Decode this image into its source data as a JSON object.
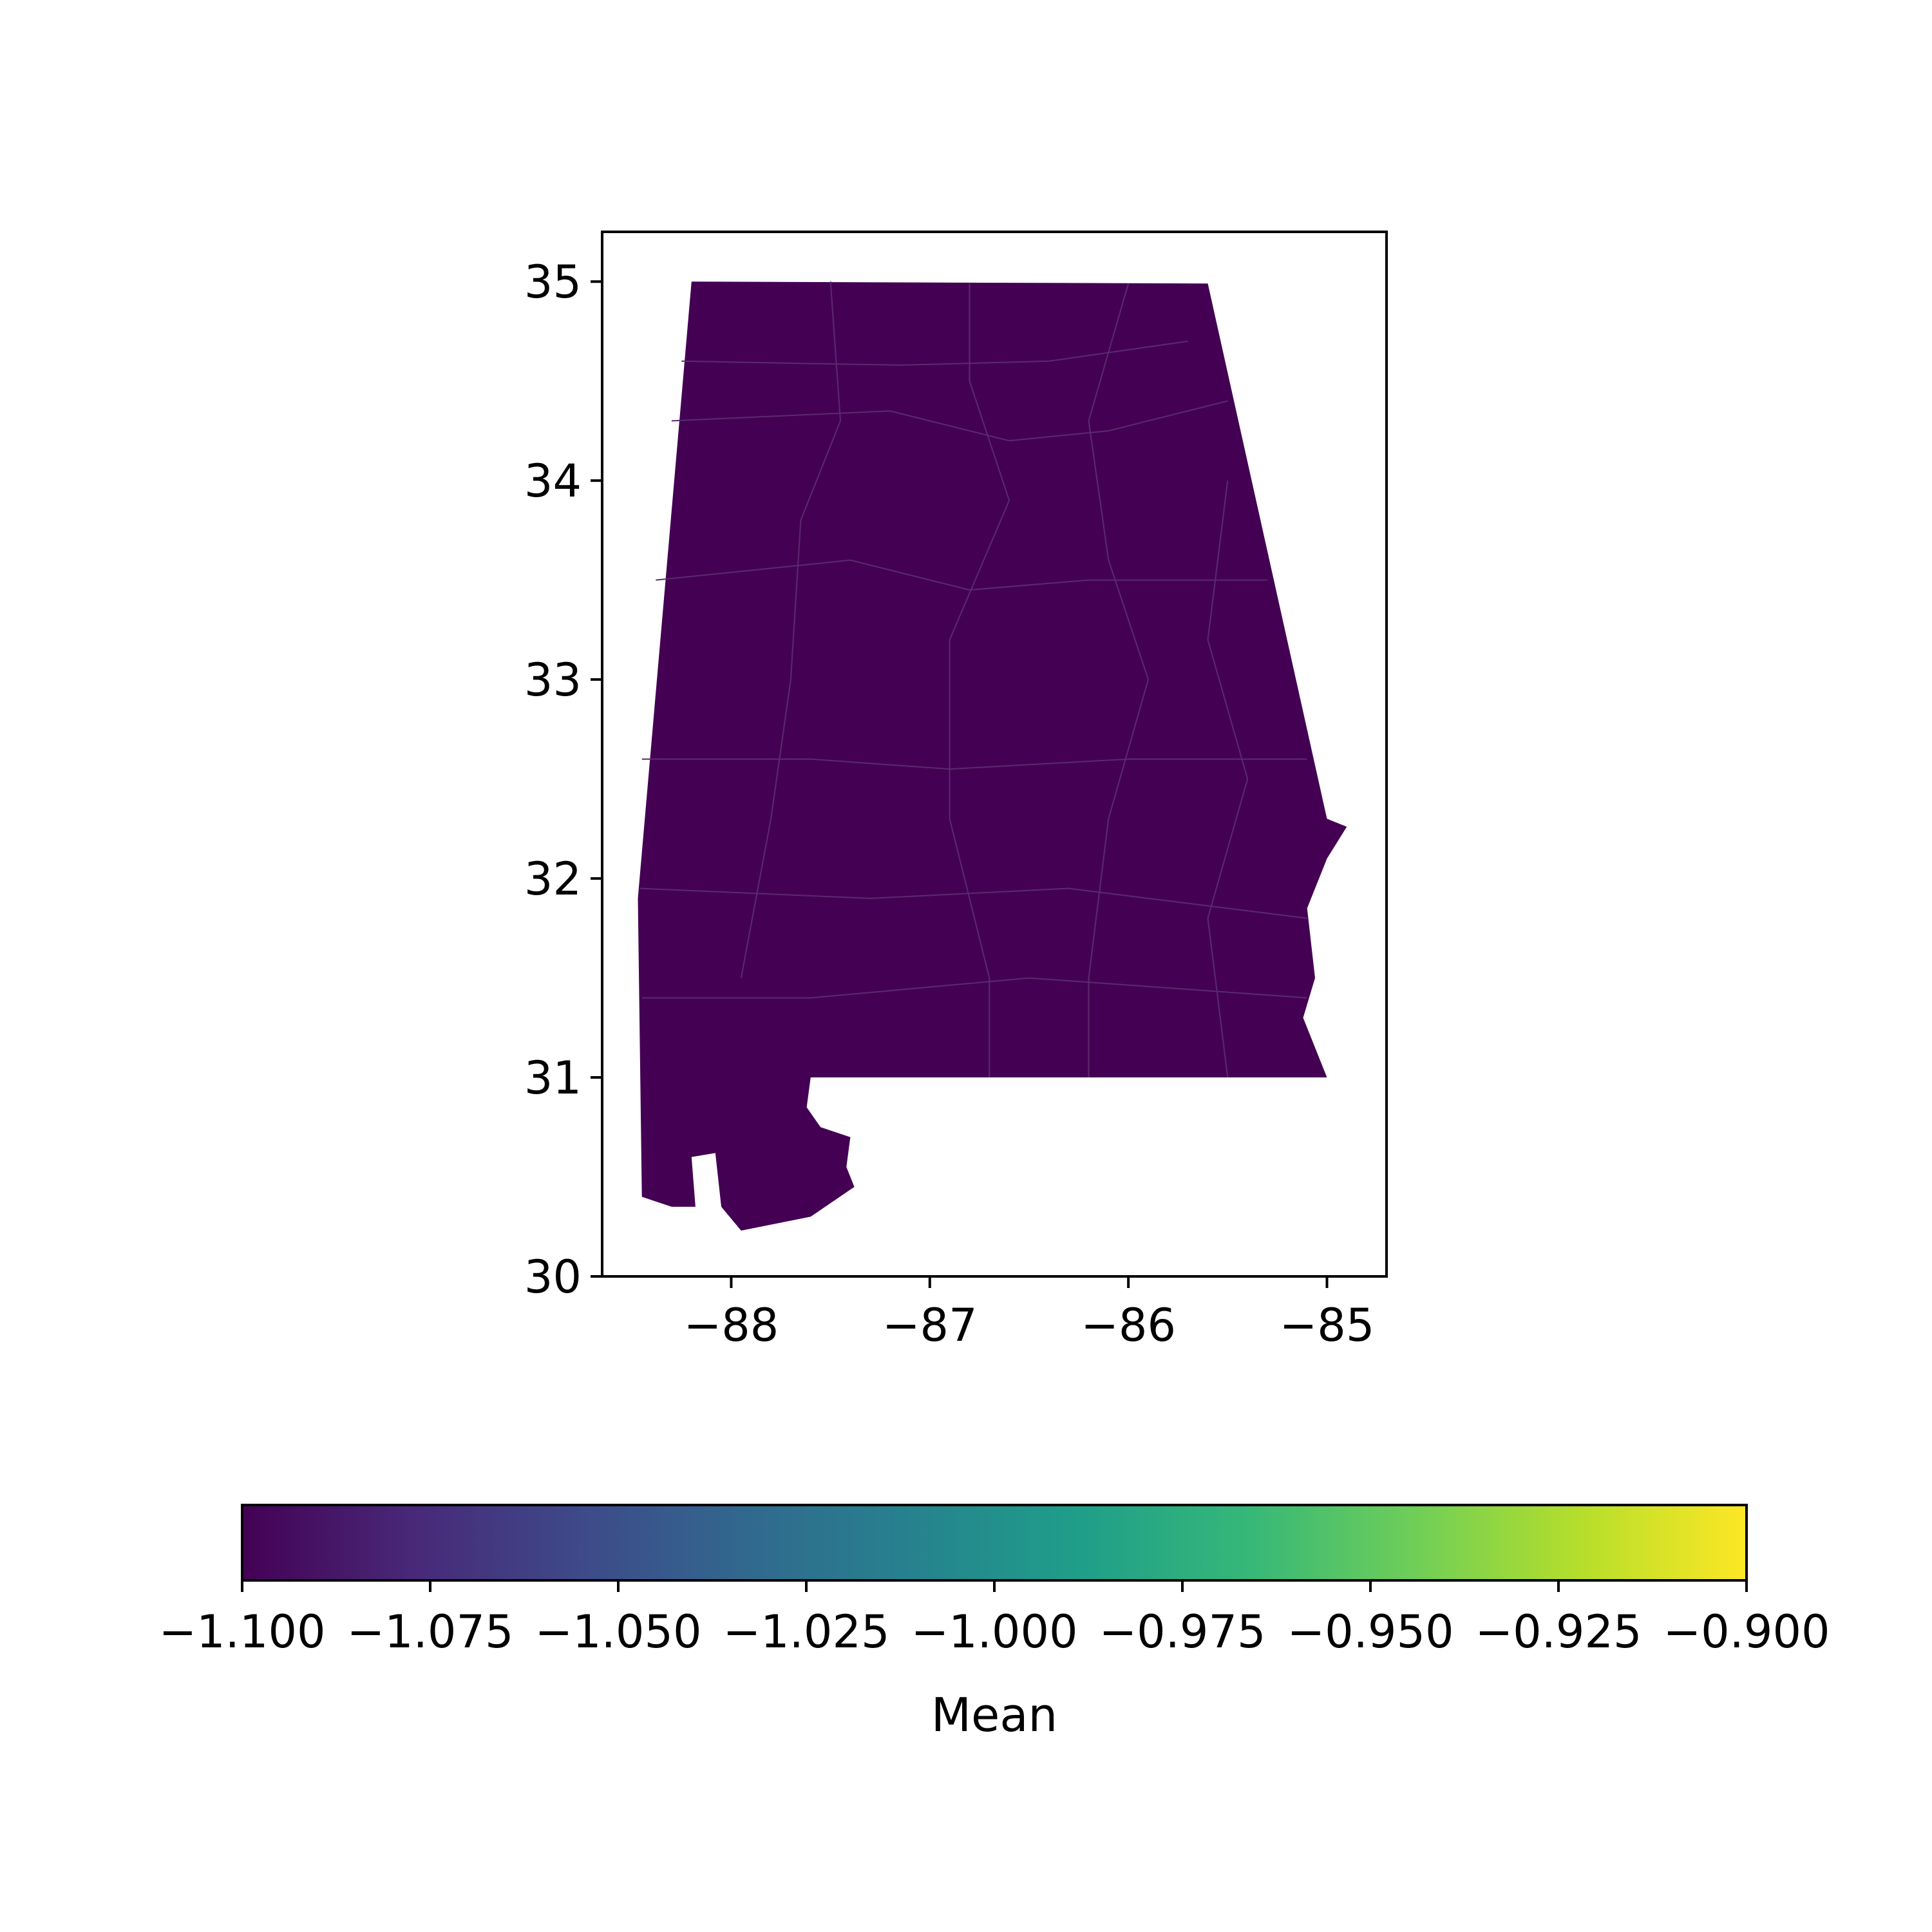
{
  "chart_data": {
    "type": "choropleth",
    "region": "Alabama counties",
    "uniform_value": -1.1,
    "fill_color": "#440154",
    "x_axis": {
      "range": [
        -88.65,
        -84.7
      ],
      "ticks": [
        -88,
        -87,
        -86,
        -85
      ],
      "tick_labels": [
        "−88",
        "−87",
        "−86",
        "−85"
      ]
    },
    "y_axis": {
      "range": [
        30.0,
        35.25
      ],
      "ticks": [
        30,
        31,
        32,
        33,
        34,
        35
      ],
      "tick_labels": [
        "30",
        "31",
        "32",
        "33",
        "34",
        "35"
      ]
    },
    "colorbar": {
      "label": "Mean",
      "range": [
        -1.1,
        -0.9
      ],
      "orientation": "horizontal",
      "colormap": "viridis",
      "colormap_stops": [
        "#440154",
        "#482878",
        "#3e4989",
        "#31688e",
        "#26828e",
        "#1f9e89",
        "#35b779",
        "#6ece58",
        "#b5de2b",
        "#fde725"
      ],
      "ticks": [
        -1.1,
        -1.075,
        -1.05,
        -1.025,
        -1.0,
        -0.975,
        -0.95,
        -0.925,
        -0.9
      ],
      "tick_labels": [
        "−1.100",
        "−1.075",
        "−1.050",
        "−1.025",
        "−1.000",
        "−0.975",
        "−0.950",
        "−0.925",
        "−0.900"
      ]
    },
    "state_outline_lonlat": [
      [
        -88.2,
        35.0
      ],
      [
        -85.6,
        34.99
      ],
      [
        -85.0,
        32.3
      ],
      [
        -84.9,
        32.26
      ],
      [
        -85.0,
        32.1
      ],
      [
        -85.1,
        31.85
      ],
      [
        -85.06,
        31.5
      ],
      [
        -85.12,
        31.3
      ],
      [
        -85.0,
        31.0
      ],
      [
        -87.6,
        31.0
      ],
      [
        -87.62,
        30.85
      ],
      [
        -87.55,
        30.75
      ],
      [
        -87.4,
        30.7
      ],
      [
        -87.42,
        30.55
      ],
      [
        -87.38,
        30.45
      ],
      [
        -87.6,
        30.3
      ],
      [
        -87.95,
        30.23
      ],
      [
        -88.05,
        30.35
      ],
      [
        -88.08,
        30.62
      ],
      [
        -88.2,
        30.6
      ],
      [
        -88.18,
        30.35
      ],
      [
        -88.3,
        30.35
      ],
      [
        -88.45,
        30.4
      ],
      [
        -88.47,
        31.9
      ],
      [
        -88.2,
        35.0
      ]
    ],
    "county_lines_lonlat": [
      [
        [
          -88.25,
          34.6
        ],
        [
          -87.15,
          34.58
        ],
        [
          -86.4,
          34.6
        ],
        [
          -85.7,
          34.7
        ]
      ],
      [
        [
          -88.3,
          34.3
        ],
        [
          -87.2,
          34.35
        ],
        [
          -86.6,
          34.2
        ],
        [
          -86.1,
          34.25
        ],
        [
          -85.5,
          34.4
        ]
      ],
      [
        [
          -88.38,
          33.5
        ],
        [
          -87.4,
          33.6
        ],
        [
          -86.8,
          33.45
        ],
        [
          -86.2,
          33.5
        ],
        [
          -85.3,
          33.5
        ]
      ],
      [
        [
          -88.45,
          32.6
        ],
        [
          -87.6,
          32.6
        ],
        [
          -86.9,
          32.55
        ],
        [
          -86.0,
          32.6
        ],
        [
          -85.1,
          32.6
        ]
      ],
      [
        [
          -88.46,
          31.95
        ],
        [
          -87.3,
          31.9
        ],
        [
          -86.3,
          31.95
        ],
        [
          -85.1,
          31.8
        ]
      ],
      [
        [
          -88.45,
          31.4
        ],
        [
          -87.6,
          31.4
        ],
        [
          -86.5,
          31.5
        ],
        [
          -85.1,
          31.4
        ]
      ],
      [
        [
          -87.5,
          35.0
        ],
        [
          -87.45,
          34.3
        ],
        [
          -87.65,
          33.8
        ],
        [
          -87.7,
          33.0
        ],
        [
          -87.8,
          32.3
        ],
        [
          -87.95,
          31.5
        ]
      ],
      [
        [
          -86.8,
          34.99
        ],
        [
          -86.8,
          34.5
        ],
        [
          -86.6,
          33.9
        ],
        [
          -86.9,
          33.2
        ],
        [
          -86.9,
          32.3
        ],
        [
          -86.7,
          31.5
        ],
        [
          -86.7,
          31.0
        ]
      ],
      [
        [
          -86.0,
          34.99
        ],
        [
          -86.2,
          34.3
        ],
        [
          -86.1,
          33.6
        ],
        [
          -85.9,
          33.0
        ],
        [
          -86.1,
          32.3
        ],
        [
          -86.2,
          31.5
        ],
        [
          -86.2,
          31.0
        ]
      ],
      [
        [
          -85.5,
          34.0
        ],
        [
          -85.6,
          33.2
        ],
        [
          -85.4,
          32.5
        ],
        [
          -85.6,
          31.8
        ],
        [
          -85.5,
          31.0
        ]
      ]
    ]
  }
}
